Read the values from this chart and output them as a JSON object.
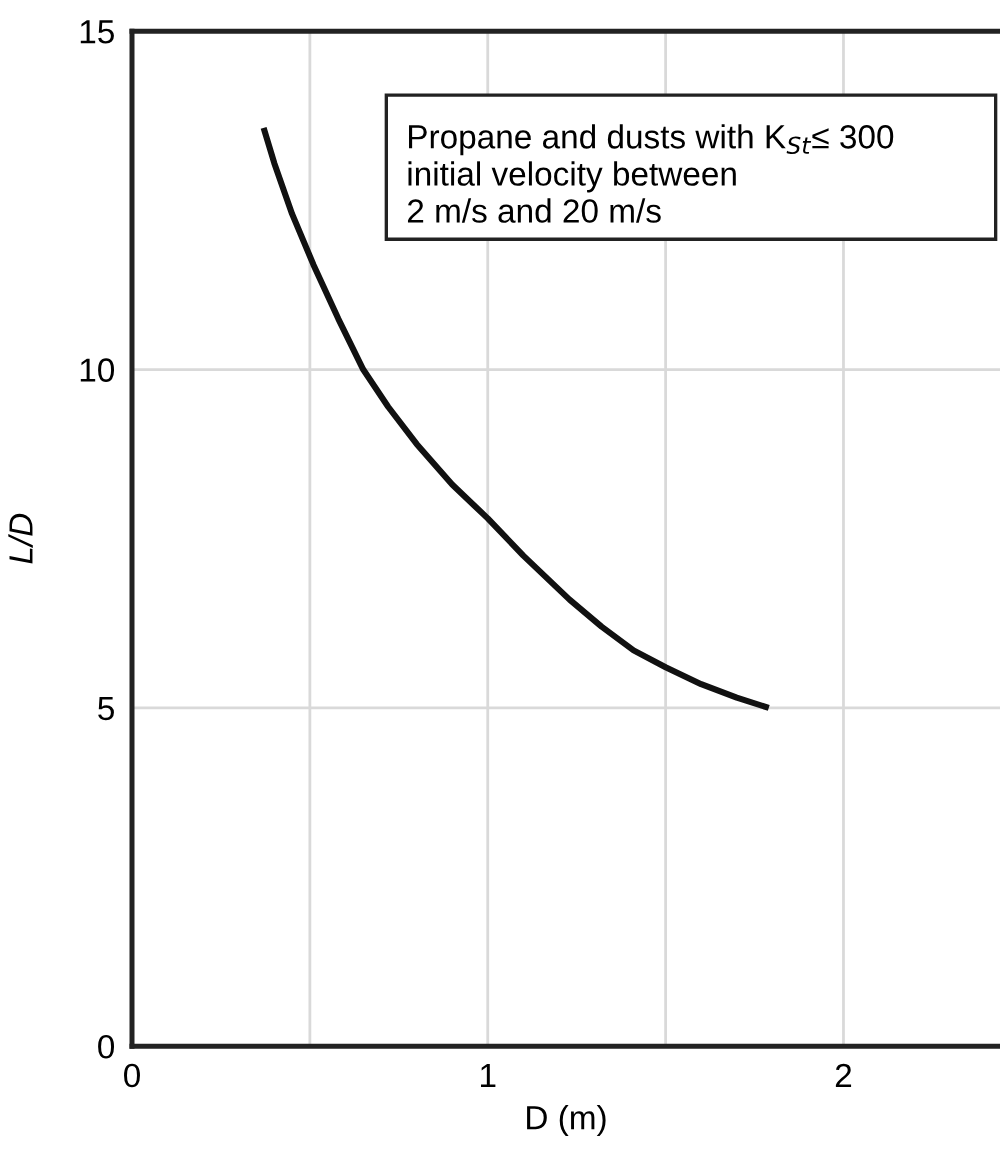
{
  "chart_data": {
    "type": "line",
    "xlabel": "D (m)",
    "ylabel": "L/D",
    "annotations": [
      "Propane and dusts with K$_{St}$≤ 300",
      "initial velocity between",
      "2 m/s and 20 m/s"
    ],
    "x": [
      0.37,
      0.4,
      0.45,
      0.51,
      0.58,
      0.65,
      0.72,
      0.8,
      0.9,
      1.0,
      1.1,
      1.23,
      1.32,
      1.41,
      1.5,
      1.6,
      1.7,
      1.79
    ],
    "series": [
      {
        "color": "#111111",
        "values": [
          13.57,
          13.05,
          12.3,
          11.55,
          10.75,
          10.0,
          9.45,
          8.9,
          8.3,
          7.8,
          7.25,
          6.6,
          6.2,
          5.85,
          5.6,
          5.35,
          5.15,
          5.0
        ]
      }
    ],
    "xlim": [
      0,
      2.44
    ],
    "ylim": [
      0,
      15
    ],
    "xticks": [
      0,
      {
        "value": 0.5,
        "label": null
      },
      1,
      {
        "value": 1.5,
        "label": null
      },
      2
    ],
    "yticks": [
      0,
      5,
      10,
      15
    ],
    "grid": true,
    "legend": false,
    "marker": "none",
    "line_style": "solid"
  }
}
